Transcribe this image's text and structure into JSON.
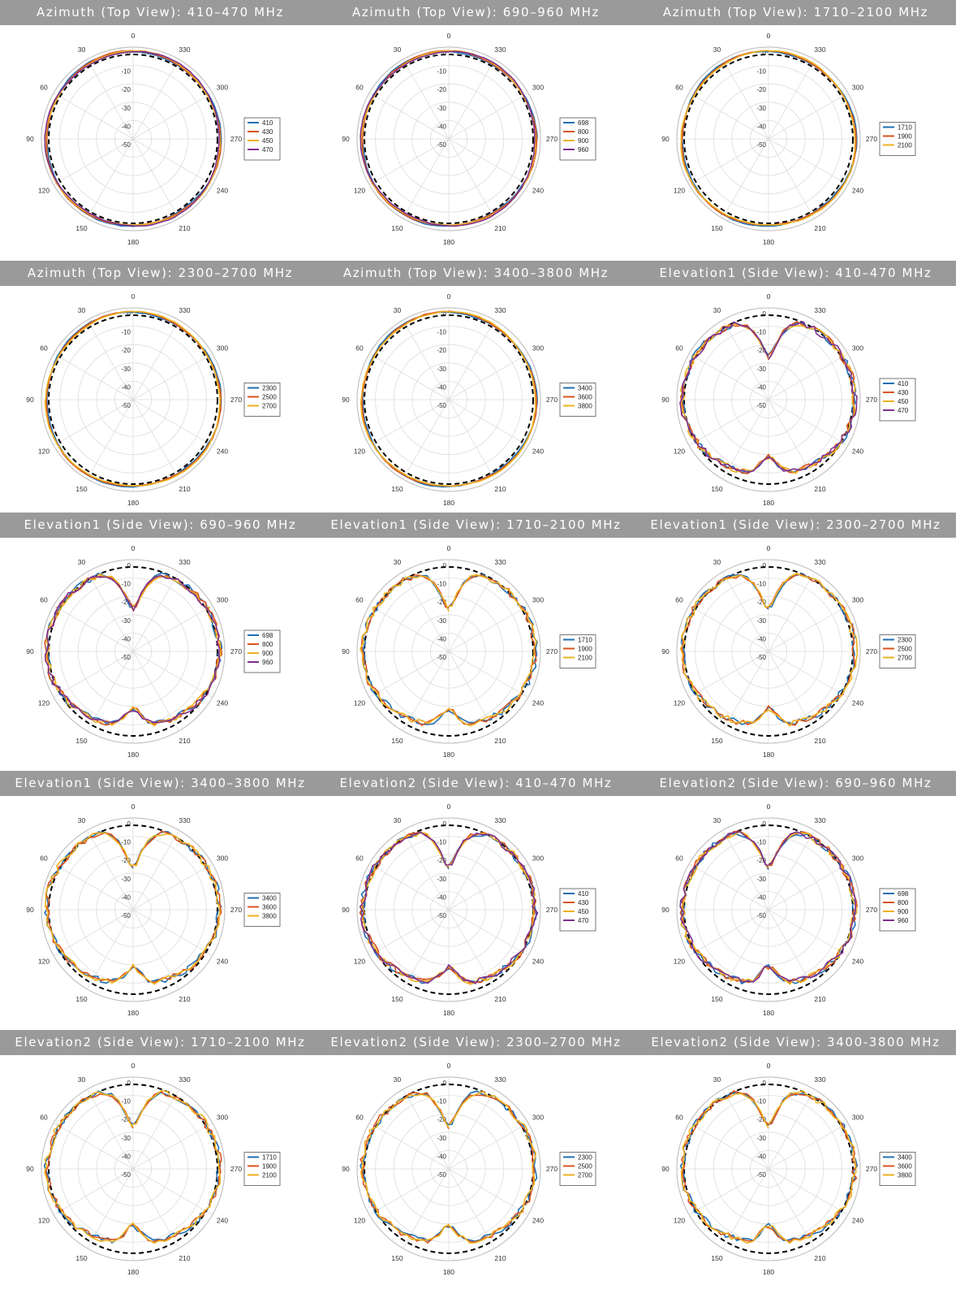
{
  "colors": {
    "header_bg": "#9a9a9a",
    "series": [
      "#1f6fb2",
      "#d9531e",
      "#edb120",
      "#7e2f8e"
    ],
    "reference_circle": "#000000",
    "grid": "#dddddd"
  },
  "chart_data": [
    {
      "type": "polar",
      "title": "Azimuth (Top View): 410–470 MHz",
      "r_ticks": [
        "0",
        "-10",
        "-20",
        "-30",
        "-40",
        "-50"
      ],
      "angle_ticks": [
        "0",
        "30",
        "60",
        "90",
        "120",
        "150",
        "180",
        "210",
        "240",
        "270",
        "300",
        "330"
      ],
      "legend_position": "right",
      "series": [
        {
          "name": "410",
          "shape": "omni",
          "gain_db": [
            -3
          ]
        },
        {
          "name": "430",
          "shape": "omni",
          "gain_db": [
            -3
          ]
        },
        {
          "name": "450",
          "shape": "omni",
          "gain_db": [
            -3
          ]
        },
        {
          "name": "470",
          "shape": "omni",
          "gain_db": [
            -3
          ]
        }
      ],
      "reference_db": -4
    },
    {
      "type": "polar",
      "title": "Azimuth (Top View): 690–960 MHz",
      "r_ticks": [
        "0",
        "-10",
        "-20",
        "-30",
        "-40",
        "-50"
      ],
      "angle_ticks": [
        "0",
        "30",
        "60",
        "90",
        "120",
        "150",
        "180",
        "210",
        "240",
        "270",
        "300",
        "330"
      ],
      "legend_position": "right",
      "series": [
        {
          "name": "698",
          "shape": "omni"
        },
        {
          "name": "800",
          "shape": "omni"
        },
        {
          "name": "900",
          "shape": "omni"
        },
        {
          "name": "960",
          "shape": "omni"
        }
      ],
      "reference_db": -4
    },
    {
      "type": "polar",
      "title": "Azimuth (Top View): 1710–2100 MHz",
      "r_ticks": [
        "0",
        "-10",
        "-20",
        "-30",
        "-40",
        "-50"
      ],
      "angle_ticks": [
        "0",
        "30",
        "60",
        "90",
        "120",
        "150",
        "180",
        "210",
        "240",
        "270",
        "300",
        "330"
      ],
      "legend_position": "right",
      "series": [
        {
          "name": "1710",
          "shape": "omni"
        },
        {
          "name": "1900",
          "shape": "omni"
        },
        {
          "name": "2100",
          "shape": "omni"
        }
      ],
      "reference_db": -4
    },
    {
      "type": "polar",
      "title": "Azimuth (Top View): 2300–2700 MHz",
      "r_ticks": [
        "0",
        "-10",
        "-20",
        "-30",
        "-40",
        "-50"
      ],
      "angle_ticks": [
        "0",
        "30",
        "60",
        "90",
        "120",
        "150",
        "180",
        "210",
        "240",
        "270",
        "300",
        "330"
      ],
      "legend_position": "right",
      "series": [
        {
          "name": "2300",
          "shape": "omni"
        },
        {
          "name": "2500",
          "shape": "omni"
        },
        {
          "name": "2700",
          "shape": "omni"
        }
      ],
      "reference_db": -4
    },
    {
      "type": "polar",
      "title": "Azimuth (Top View): 3400–3800 MHz",
      "r_ticks": [
        "0",
        "-10",
        "-20",
        "-30",
        "-40",
        "-50"
      ],
      "angle_ticks": [
        "0",
        "30",
        "60",
        "90",
        "120",
        "150",
        "180",
        "210",
        "240",
        "270",
        "300",
        "330"
      ],
      "legend_position": "right",
      "series": [
        {
          "name": "3400",
          "shape": "omni"
        },
        {
          "name": "3600",
          "shape": "omni"
        },
        {
          "name": "3800",
          "shape": "omni"
        }
      ],
      "reference_db": -4
    },
    {
      "type": "polar",
      "title": "Elevation1 (Side View): 410–470 MHz",
      "r_ticks": [
        "0",
        "-10",
        "-20",
        "-30",
        "-40",
        "-50"
      ],
      "angle_ticks": [
        "0",
        "30",
        "60",
        "90",
        "120",
        "150",
        "180",
        "210",
        "240",
        "270",
        "300",
        "330"
      ],
      "legend_position": "right",
      "series": [
        {
          "name": "410",
          "shape": "elevation"
        },
        {
          "name": "430",
          "shape": "elevation"
        },
        {
          "name": "450",
          "shape": "elevation"
        },
        {
          "name": "470",
          "shape": "elevation"
        }
      ],
      "reference_db": -4
    },
    {
      "type": "polar",
      "title": "Elevation1 (Side View): 690–960 MHz",
      "r_ticks": [
        "0",
        "-10",
        "-20",
        "-30",
        "-40",
        "-50"
      ],
      "angle_ticks": [
        "0",
        "30",
        "60",
        "90",
        "120",
        "150",
        "180",
        "210",
        "240",
        "270",
        "300",
        "330"
      ],
      "legend_position": "right",
      "series": [
        {
          "name": "698",
          "shape": "elevation"
        },
        {
          "name": "800",
          "shape": "elevation"
        },
        {
          "name": "900",
          "shape": "elevation"
        },
        {
          "name": "960",
          "shape": "elevation"
        }
      ],
      "reference_db": -4
    },
    {
      "type": "polar",
      "title": "Elevation1 (Side View): 1710–2100 MHz",
      "r_ticks": [
        "0",
        "-10",
        "-20",
        "-30",
        "-40",
        "-50"
      ],
      "angle_ticks": [
        "0",
        "30",
        "60",
        "90",
        "120",
        "150",
        "180",
        "210",
        "240",
        "270",
        "300",
        "330"
      ],
      "legend_position": "right",
      "series": [
        {
          "name": "1710",
          "shape": "elevation"
        },
        {
          "name": "1900",
          "shape": "elevation"
        },
        {
          "name": "2100",
          "shape": "elevation"
        }
      ],
      "reference_db": -4
    },
    {
      "type": "polar",
      "title": "Elevation1 (Side View): 2300–2700 MHz",
      "r_ticks": [
        "0",
        "-10",
        "-20",
        "-30",
        "-40",
        "-50"
      ],
      "angle_ticks": [
        "0",
        "30",
        "60",
        "90",
        "120",
        "150",
        "180",
        "210",
        "240",
        "270",
        "300",
        "330"
      ],
      "legend_position": "right",
      "series": [
        {
          "name": "2300",
          "shape": "elevation"
        },
        {
          "name": "2500",
          "shape": "elevation"
        },
        {
          "name": "2700",
          "shape": "elevation"
        }
      ],
      "reference_db": -4
    },
    {
      "type": "polar",
      "title": "Elevation1 (Side View): 3400–3800 MHz",
      "r_ticks": [
        "0",
        "-10",
        "-20",
        "-30",
        "-40",
        "-50"
      ],
      "angle_ticks": [
        "0",
        "30",
        "60",
        "90",
        "120",
        "150",
        "180",
        "210",
        "240",
        "270",
        "300",
        "330"
      ],
      "legend_position": "right",
      "series": [
        {
          "name": "3400",
          "shape": "elevation"
        },
        {
          "name": "3600",
          "shape": "elevation"
        },
        {
          "name": "3800",
          "shape": "elevation"
        }
      ],
      "reference_db": -4
    },
    {
      "type": "polar",
      "title": "Elevation2 (Side View): 410–470 MHz",
      "r_ticks": [
        "0",
        "-10",
        "-20",
        "-30",
        "-40",
        "-50"
      ],
      "angle_ticks": [
        "0",
        "30",
        "60",
        "90",
        "120",
        "150",
        "180",
        "210",
        "240",
        "270",
        "300",
        "330"
      ],
      "legend_position": "right",
      "series": [
        {
          "name": "410",
          "shape": "elevation"
        },
        {
          "name": "430",
          "shape": "elevation"
        },
        {
          "name": "450",
          "shape": "elevation"
        },
        {
          "name": "470",
          "shape": "elevation"
        }
      ],
      "reference_db": -4
    },
    {
      "type": "polar",
      "title": "Elevation2 (Side View): 690–960 MHz",
      "r_ticks": [
        "0",
        "-10",
        "-20",
        "-30",
        "-40",
        "-50"
      ],
      "angle_ticks": [
        "0",
        "30",
        "60",
        "90",
        "120",
        "150",
        "180",
        "210",
        "240",
        "270",
        "300",
        "330"
      ],
      "legend_position": "right",
      "series": [
        {
          "name": "698",
          "shape": "elevation"
        },
        {
          "name": "800",
          "shape": "elevation"
        },
        {
          "name": "900",
          "shape": "elevation"
        },
        {
          "name": "960",
          "shape": "elevation"
        }
      ],
      "reference_db": -4
    },
    {
      "type": "polar",
      "title": "Elevation2 (Side View): 1710–2100 MHz",
      "r_ticks": [
        "0",
        "-10",
        "-20",
        "-30",
        "-40",
        "-50"
      ],
      "angle_ticks": [
        "0",
        "30",
        "60",
        "90",
        "120",
        "150",
        "180",
        "210",
        "240",
        "270",
        "300",
        "330"
      ],
      "legend_position": "right",
      "series": [
        {
          "name": "1710",
          "shape": "elevation"
        },
        {
          "name": "1900",
          "shape": "elevation"
        },
        {
          "name": "2100",
          "shape": "elevation"
        }
      ],
      "reference_db": -4
    },
    {
      "type": "polar",
      "title": "Elevation2 (Side View): 2300–2700 MHz",
      "r_ticks": [
        "0",
        "-10",
        "-20",
        "-30",
        "-40",
        "-50"
      ],
      "angle_ticks": [
        "0",
        "30",
        "60",
        "90",
        "120",
        "150",
        "180",
        "210",
        "240",
        "270",
        "300",
        "330"
      ],
      "legend_position": "right",
      "series": [
        {
          "name": "2300",
          "shape": "elevation"
        },
        {
          "name": "2500",
          "shape": "elevation"
        },
        {
          "name": "2700",
          "shape": "elevation"
        }
      ],
      "reference_db": -4
    },
    {
      "type": "polar",
      "title": "Elevation2 (Side View): 3400-3800 MHz",
      "r_ticks": [
        "0",
        "-10",
        "-20",
        "-30",
        "-40",
        "-50"
      ],
      "angle_ticks": [
        "0",
        "30",
        "60",
        "90",
        "120",
        "150",
        "180",
        "210",
        "240",
        "270",
        "300",
        "330"
      ],
      "legend_position": "right",
      "series": [
        {
          "name": "3400",
          "shape": "elevation"
        },
        {
          "name": "3600",
          "shape": "elevation"
        },
        {
          "name": "3800",
          "shape": "elevation"
        }
      ],
      "reference_db": -4
    }
  ]
}
